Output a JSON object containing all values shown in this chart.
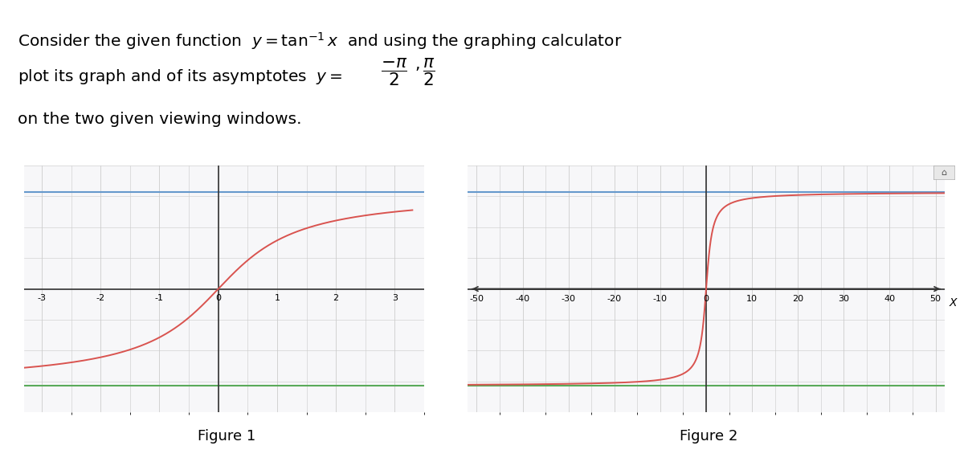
{
  "fig1_xlim": [
    -3.3,
    3.3
  ],
  "fig1_ylim": [
    -2.0,
    2.0
  ],
  "fig1_xticks": [
    -3,
    -2,
    -1,
    0,
    1,
    2,
    3
  ],
  "fig2_xlim": [
    -52,
    52
  ],
  "fig2_ylim": [
    -2.0,
    2.0
  ],
  "fig2_xticks": [
    -50,
    -40,
    -30,
    -20,
    -10,
    0,
    10,
    20,
    30,
    40,
    50
  ],
  "arctan_color": "#d9534f",
  "asymptote_upper_color": "#6699cc",
  "asymptote_lower_color": "#5aaa5a",
  "axis_color": "#333333",
  "grid_color": "#cccccc",
  "background_color": "#f7f7f9",
  "pi_half": 1.5707963267948966,
  "figure1_label": "Figure 1",
  "figure2_label": "Figure 2",
  "line_width": 1.4,
  "asymptote_lw": 1.5,
  "grid_lw": 0.6,
  "tick_fontsize": 8,
  "label_fontsize": 13,
  "text_fontsize": 14.5
}
